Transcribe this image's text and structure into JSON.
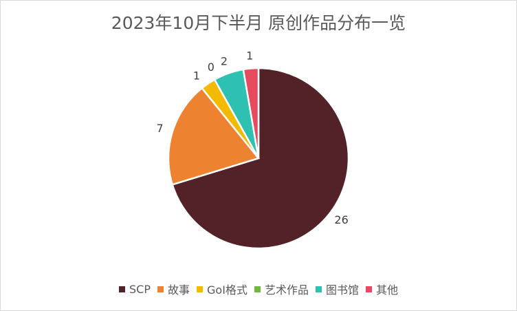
{
  "chart_data": {
    "type": "pie",
    "title": "2023年10月下半月 原创作品分布一览",
    "categories": [
      "SCP",
      "故事",
      "GoI格式",
      "艺术作品",
      "图书馆",
      "其他"
    ],
    "values": [
      26,
      7,
      1,
      0,
      2,
      1
    ],
    "colors": [
      "#532228",
      "#ED8230",
      "#F2BA00",
      "#70B83E",
      "#2EC0B1",
      "#E54A5E"
    ],
    "legend_position": "bottom",
    "start_angle_deg": 0,
    "direction": "clockwise"
  }
}
